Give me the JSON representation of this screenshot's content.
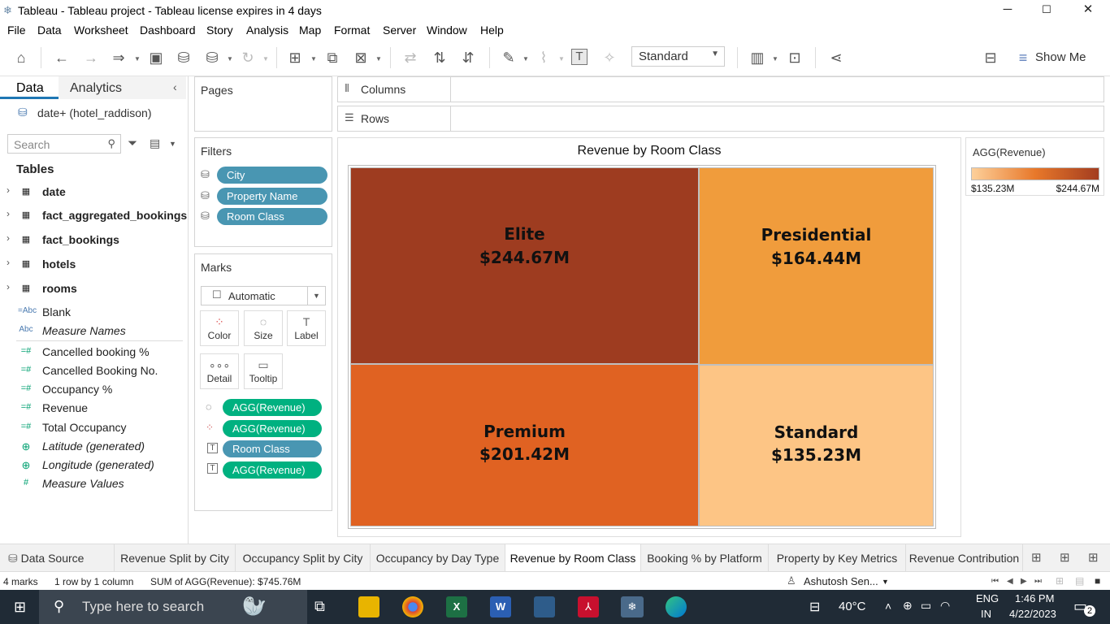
{
  "window": {
    "title": "Tableau - Tableau project - Tableau license expires in 4 days",
    "minimize": "─",
    "maximize": "☐",
    "close": "✕"
  },
  "menu": [
    "File",
    "Data",
    "Worksheet",
    "Dashboard",
    "Story",
    "Analysis",
    "Map",
    "Format",
    "Server",
    "Window",
    "Help"
  ],
  "toolbar": {
    "fit_select": "Standard",
    "show_me": "Show Me"
  },
  "data_pane": {
    "tab_data": "Data",
    "tab_analytics": "Analytics",
    "datasource": "date+ (hotel_raddison)",
    "search_placeholder": "Search",
    "tables_header": "Tables",
    "tables": [
      "date",
      "fact_aggregated_bookings",
      "fact_bookings",
      "hotels",
      "rooms"
    ],
    "fields": [
      {
        "icon": "=Abc",
        "name": "Blank",
        "italic": false
      },
      {
        "icon": "Abc",
        "name": "Measure Names",
        "italic": true
      },
      {
        "icon": "=#",
        "name": "Cancelled booking %",
        "italic": false
      },
      {
        "icon": "=#",
        "name": "Cancelled Booking No.",
        "italic": false
      },
      {
        "icon": "=#",
        "name": "Occupancy %",
        "italic": false
      },
      {
        "icon": "=#",
        "name": "Revenue",
        "italic": false
      },
      {
        "icon": "=#",
        "name": "Total Occupancy",
        "italic": false
      },
      {
        "icon": "globe",
        "name": "Latitude (generated)",
        "italic": true
      },
      {
        "icon": "globe",
        "name": "Longitude (generated)",
        "italic": true
      },
      {
        "icon": "#",
        "name": "Measure Values",
        "italic": true
      }
    ]
  },
  "shelves": {
    "pages": "Pages",
    "filters": "Filters",
    "filter_pills": [
      "City",
      "Property Name",
      "Room Class"
    ],
    "marks": "Marks",
    "mark_type": "Automatic",
    "mark_buttons": [
      "Color",
      "Size",
      "Label",
      "Detail",
      "Tooltip"
    ],
    "mark_pills": [
      {
        "label": "AGG(Revenue)",
        "color": "green",
        "icon": "size"
      },
      {
        "label": "AGG(Revenue)",
        "color": "green",
        "icon": "color"
      },
      {
        "label": "Room Class",
        "color": "blue",
        "icon": "label"
      },
      {
        "label": "AGG(Revenue)",
        "color": "green",
        "icon": "label"
      }
    ],
    "columns": "Columns",
    "rows": "Rows"
  },
  "chart_data": {
    "type": "treemap",
    "title": "Revenue by Room Class",
    "categories": [
      "Elite",
      "Presidential",
      "Premium",
      "Standard"
    ],
    "values": [
      244.67,
      164.44,
      201.42,
      135.23
    ],
    "labels": [
      "$244.67M",
      "$164.44M",
      "$201.42M",
      "$135.23M"
    ],
    "colors": [
      "#9e3c20",
      "#f09c3c",
      "#e06222",
      "#fdc585"
    ],
    "unit": "M USD"
  },
  "legend": {
    "title": "AGG(Revenue)",
    "min": "$135.23M",
    "max": "$244.67M",
    "color_low": "#fdd09a",
    "color_high": "#a33d20"
  },
  "sheet_tabs": [
    "Data Source",
    "Revenue Split by City",
    "Occupancy Split by City",
    "Occupancy by Day Type",
    "Revenue by Room Class",
    "Booking % by Platform",
    "Property by Key Metrics",
    "Revenue Contribution"
  ],
  "active_tab": "Revenue by Room Class",
  "status": {
    "marks": "4 marks",
    "rows": "1 row by 1 column",
    "sum": "SUM of AGG(Revenue): $745.76M",
    "user": "Ashutosh Sen..."
  },
  "taskbar": {
    "search_placeholder": "Type here to search",
    "temp": "40°C",
    "lang1": "ENG",
    "lang2": "IN",
    "time": "1:46 PM",
    "date": "4/22/2023",
    "notif": "2"
  }
}
